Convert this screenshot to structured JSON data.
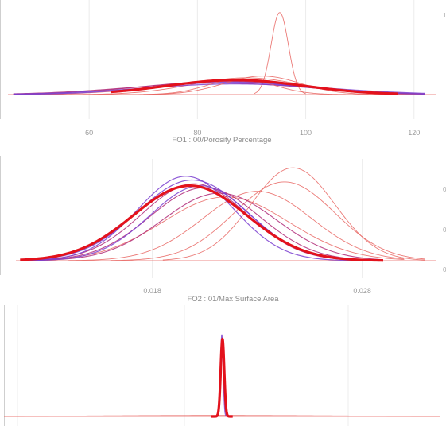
{
  "chart_data": [
    {
      "type": "line",
      "xlabel": "FO1 : 00/Porosity Percentage",
      "x_ticks": [
        60,
        80,
        100,
        120
      ],
      "xlim": [
        45,
        124
      ],
      "ylim": [
        0,
        1.0
      ],
      "right_edge_label": "1",
      "colors": {
        "light": "#e8635f",
        "mid": "#b02a78",
        "purple": "#7b3fd0",
        "bold": "#e3121c"
      },
      "series": [
        {
          "style": "light",
          "mean": 95.2,
          "sd": 1.6,
          "peak": 0.93,
          "x": [
            90.5,
            100
          ]
        },
        {
          "style": "light",
          "mean": 89.0,
          "sd": 10.0,
          "peak": 0.19,
          "x": [
            48,
            122
          ]
        },
        {
          "style": "light",
          "mean": 86.0,
          "sd": 13.0,
          "peak": 0.15,
          "x": [
            46,
            122
          ]
        },
        {
          "style": "mid",
          "mean": 85.0,
          "sd": 15.0,
          "peak": 0.15,
          "x": [
            46,
            122
          ]
        },
        {
          "style": "mid",
          "mean": 84.0,
          "sd": 16.5,
          "peak": 0.13,
          "x": [
            46,
            122
          ]
        },
        {
          "style": "purple",
          "mean": 86.0,
          "sd": 14.0,
          "peak": 0.14,
          "x": [
            46,
            122
          ]
        },
        {
          "style": "purple",
          "mean": 87.0,
          "sd": 17.0,
          "peak": 0.12,
          "x": [
            46,
            122
          ]
        },
        {
          "style": "light",
          "mean": 92.0,
          "sd": 7.0,
          "peak": 0.21,
          "x": [
            60,
            118
          ]
        },
        {
          "style": "light",
          "mean": 88.0,
          "sd": 6.0,
          "peak": 0.18,
          "x": [
            70,
            110
          ]
        },
        {
          "style": "bold",
          "mean": 87.0,
          "sd": 12.5,
          "peak": 0.165,
          "x": [
            64,
            117
          ]
        }
      ]
    },
    {
      "type": "line",
      "xlabel": "FO2 : 01/Max Surface Area",
      "x_ticks": [
        0.018,
        0.028
      ],
      "xlim": [
        0.0115,
        0.0315
      ],
      "ylim": [
        0,
        1.0
      ],
      "right_edge_labels": [
        "0",
        "0",
        "0"
      ],
      "colors": {
        "light": "#e8635f",
        "mid": "#b02a78",
        "purple": "#7b3fd0",
        "bold": "#e3121c"
      },
      "series": [
        {
          "style": "light",
          "mean": 0.0247,
          "sd": 0.002,
          "peak": 0.99,
          "x": [
            0.0185,
            0.031
          ]
        },
        {
          "style": "light",
          "mean": 0.0243,
          "sd": 0.0024,
          "peak": 0.84,
          "x": [
            0.016,
            0.031
          ]
        },
        {
          "style": "light",
          "mean": 0.023,
          "sd": 0.0026,
          "peak": 0.74,
          "x": [
            0.014,
            0.03
          ]
        },
        {
          "style": "light",
          "mean": 0.0215,
          "sd": 0.003,
          "peak": 0.68,
          "x": [
            0.013,
            0.03
          ]
        },
        {
          "style": "mid",
          "mean": 0.0212,
          "sd": 0.0027,
          "peak": 0.72,
          "x": [
            0.0125,
            0.029
          ]
        },
        {
          "style": "mid",
          "mean": 0.0205,
          "sd": 0.0026,
          "peak": 0.78,
          "x": [
            0.012,
            0.029
          ]
        },
        {
          "style": "mid",
          "mean": 0.02,
          "sd": 0.0025,
          "peak": 0.82,
          "x": [
            0.012,
            0.029
          ]
        },
        {
          "style": "purple",
          "mean": 0.0196,
          "sd": 0.0023,
          "peak": 0.9,
          "x": [
            0.012,
            0.029
          ]
        },
        {
          "style": "purple",
          "mean": 0.0199,
          "sd": 0.0026,
          "peak": 0.86,
          "x": [
            0.012,
            0.029
          ]
        },
        {
          "style": "purple",
          "mean": 0.0203,
          "sd": 0.0024,
          "peak": 0.8,
          "x": [
            0.012,
            0.029
          ]
        },
        {
          "style": "bold",
          "mean": 0.0198,
          "sd": 0.0027,
          "peak": 0.8,
          "x": [
            0.0117,
            0.029
          ]
        }
      ]
    },
    {
      "type": "line",
      "xlabel": "",
      "xlim": [
        -1,
        1
      ],
      "ylim": [
        0,
        1.0
      ],
      "colors": {
        "light": "#e8635f",
        "mid": "#b02a78",
        "purple": "#7b3fd0",
        "bold": "#e3121c"
      },
      "series": [
        {
          "style": "light",
          "mean": -0.02,
          "sd": 0.5,
          "peak": 0.012,
          "x": [
            -1,
            1
          ]
        },
        {
          "style": "purple",
          "mean": 0.0,
          "sd": 0.006,
          "peak": 0.97,
          "x": [
            -0.05,
            0.05
          ]
        },
        {
          "style": "mid",
          "mean": 0.002,
          "sd": 0.007,
          "peak": 0.9,
          "x": [
            -0.05,
            0.05
          ]
        },
        {
          "style": "bold",
          "mean": 0.003,
          "sd": 0.008,
          "peak": 0.92,
          "x": [
            -0.05,
            0.05
          ]
        }
      ]
    }
  ]
}
